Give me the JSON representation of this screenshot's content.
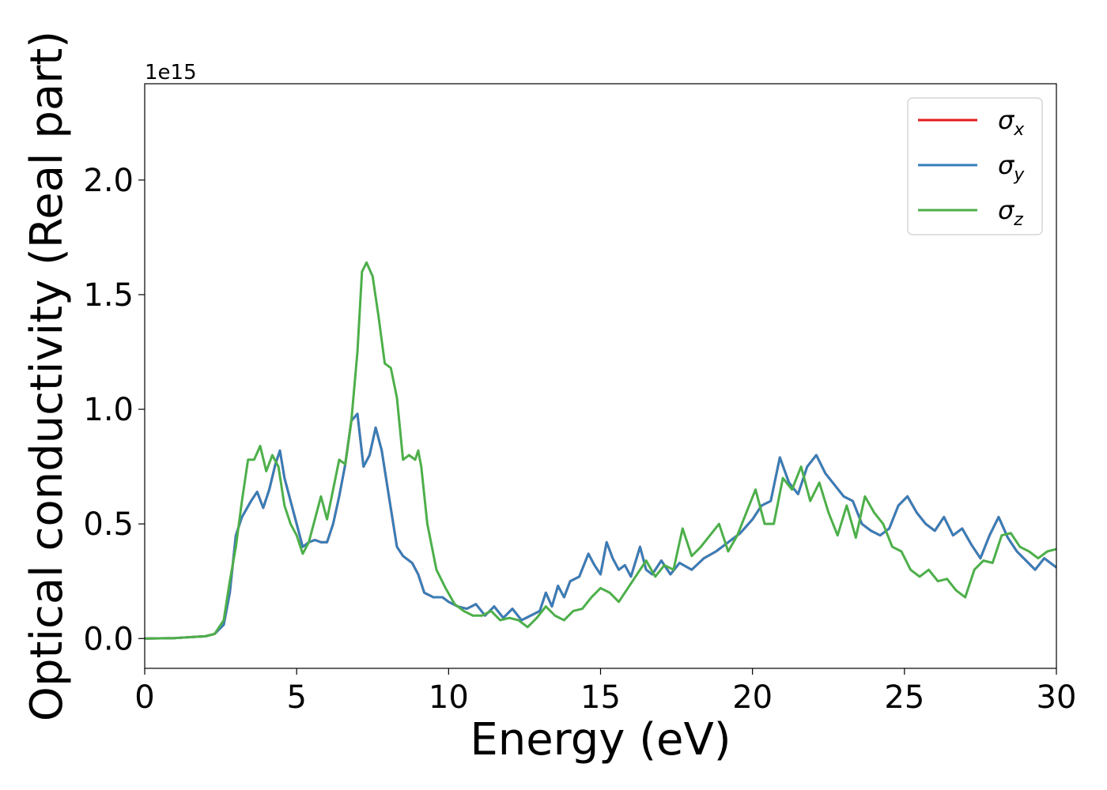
{
  "chart_data": {
    "type": "line",
    "title": "",
    "xlabel": "Energy (eV)",
    "ylabel": "Optical conductivity (Real part)",
    "y_offset_label": "1e15",
    "xlim": [
      0,
      30
    ],
    "ylim": [
      -0.13,
      2.42
    ],
    "xticks": [
      0,
      5,
      10,
      15,
      20,
      25,
      30
    ],
    "xtick_labels": [
      "0",
      "5",
      "10",
      "15",
      "20",
      "25",
      "30"
    ],
    "yticks": [
      0.0,
      0.5,
      1.0,
      1.5,
      2.0
    ],
    "ytick_labels": [
      "0.0",
      "0.5",
      "1.0",
      "1.5",
      "2.0"
    ],
    "grid": false,
    "legend_position": "top-right",
    "series": [
      {
        "name": "σx",
        "legend_symbol": "σ",
        "legend_subscript": "x",
        "color": "#e41a1c",
        "x": [
          0,
          1,
          2,
          2.3,
          2.6,
          2.8,
          3.0,
          3.2,
          3.5,
          3.7,
          3.9,
          4.1,
          4.3,
          4.45,
          4.6,
          4.8,
          5.0,
          5.2,
          5.4,
          5.6,
          5.8,
          6.0,
          6.2,
          6.4,
          6.6,
          6.8,
          7.0,
          7.2,
          7.4,
          7.6,
          7.8,
          8.0,
          8.3,
          8.5,
          8.8,
          9.0,
          9.2,
          9.5,
          9.8,
          10,
          10.3,
          10.6,
          10.9,
          11.2,
          11.5,
          11.8,
          12.1,
          12.4,
          12.7,
          13.0,
          13.2,
          13.4,
          13.6,
          13.8,
          14.0,
          14.3,
          14.6,
          14.8,
          15.0,
          15.2,
          15.4,
          15.6,
          15.8,
          16.0,
          16.3,
          16.5,
          16.7,
          17.0,
          17.3,
          17.6,
          18.0,
          18.4,
          18.8,
          19.2,
          19.6,
          20.0,
          20.3,
          20.6,
          20.9,
          21.2,
          21.5,
          21.8,
          22.1,
          22.4,
          22.7,
          23.0,
          23.3,
          23.6,
          23.9,
          24.2,
          24.5,
          24.8,
          25.1,
          25.4,
          25.7,
          26.0,
          26.3,
          26.6,
          26.9,
          27.2,
          27.5,
          27.8,
          28.1,
          28.4,
          28.7,
          29.0,
          29.3,
          29.6,
          30
        ],
        "y": [
          0,
          0.002,
          0.01,
          0.02,
          0.06,
          0.2,
          0.45,
          0.53,
          0.6,
          0.64,
          0.57,
          0.65,
          0.76,
          0.82,
          0.7,
          0.6,
          0.5,
          0.4,
          0.42,
          0.43,
          0.42,
          0.42,
          0.5,
          0.62,
          0.76,
          0.95,
          0.98,
          0.75,
          0.8,
          0.92,
          0.82,
          0.65,
          0.4,
          0.36,
          0.33,
          0.28,
          0.2,
          0.18,
          0.18,
          0.16,
          0.14,
          0.13,
          0.15,
          0.1,
          0.14,
          0.09,
          0.13,
          0.08,
          0.1,
          0.12,
          0.2,
          0.14,
          0.23,
          0.18,
          0.25,
          0.27,
          0.37,
          0.32,
          0.28,
          0.42,
          0.35,
          0.3,
          0.32,
          0.27,
          0.4,
          0.3,
          0.28,
          0.34,
          0.28,
          0.33,
          0.3,
          0.35,
          0.38,
          0.42,
          0.46,
          0.52,
          0.58,
          0.6,
          0.79,
          0.68,
          0.63,
          0.75,
          0.8,
          0.72,
          0.67,
          0.62,
          0.6,
          0.5,
          0.47,
          0.45,
          0.48,
          0.58,
          0.62,
          0.55,
          0.5,
          0.47,
          0.53,
          0.45,
          0.48,
          0.41,
          0.35,
          0.45,
          0.53,
          0.44,
          0.38,
          0.34,
          0.3,
          0.35,
          0.31
        ]
      },
      {
        "name": "σy",
        "legend_symbol": "σ",
        "legend_subscript": "y",
        "color": "#377eb8",
        "x": [
          0,
          1,
          2,
          2.3,
          2.6,
          2.8,
          3.0,
          3.2,
          3.5,
          3.7,
          3.9,
          4.1,
          4.3,
          4.45,
          4.6,
          4.8,
          5.0,
          5.2,
          5.4,
          5.6,
          5.8,
          6.0,
          6.2,
          6.4,
          6.6,
          6.8,
          7.0,
          7.2,
          7.4,
          7.6,
          7.8,
          8.0,
          8.3,
          8.5,
          8.8,
          9.0,
          9.2,
          9.5,
          9.8,
          10,
          10.3,
          10.6,
          10.9,
          11.2,
          11.5,
          11.8,
          12.1,
          12.4,
          12.7,
          13.0,
          13.2,
          13.4,
          13.6,
          13.8,
          14.0,
          14.3,
          14.6,
          14.8,
          15.0,
          15.2,
          15.4,
          15.6,
          15.8,
          16.0,
          16.3,
          16.5,
          16.7,
          17.0,
          17.3,
          17.6,
          18.0,
          18.4,
          18.8,
          19.2,
          19.6,
          20.0,
          20.3,
          20.6,
          20.9,
          21.2,
          21.5,
          21.8,
          22.1,
          22.4,
          22.7,
          23.0,
          23.3,
          23.6,
          23.9,
          24.2,
          24.5,
          24.8,
          25.1,
          25.4,
          25.7,
          26.0,
          26.3,
          26.6,
          26.9,
          27.2,
          27.5,
          27.8,
          28.1,
          28.4,
          28.7,
          29.0,
          29.3,
          29.6,
          30
        ],
        "y": [
          0,
          0.002,
          0.01,
          0.02,
          0.06,
          0.2,
          0.45,
          0.53,
          0.6,
          0.64,
          0.57,
          0.65,
          0.76,
          0.82,
          0.7,
          0.6,
          0.5,
          0.4,
          0.42,
          0.43,
          0.42,
          0.42,
          0.5,
          0.62,
          0.76,
          0.95,
          0.98,
          0.75,
          0.8,
          0.92,
          0.82,
          0.65,
          0.4,
          0.36,
          0.33,
          0.28,
          0.2,
          0.18,
          0.18,
          0.16,
          0.14,
          0.13,
          0.15,
          0.1,
          0.14,
          0.09,
          0.13,
          0.08,
          0.1,
          0.12,
          0.2,
          0.14,
          0.23,
          0.18,
          0.25,
          0.27,
          0.37,
          0.32,
          0.28,
          0.42,
          0.35,
          0.3,
          0.32,
          0.27,
          0.4,
          0.3,
          0.28,
          0.34,
          0.28,
          0.33,
          0.3,
          0.35,
          0.38,
          0.42,
          0.46,
          0.52,
          0.58,
          0.6,
          0.79,
          0.68,
          0.63,
          0.75,
          0.8,
          0.72,
          0.67,
          0.62,
          0.6,
          0.5,
          0.47,
          0.45,
          0.48,
          0.58,
          0.62,
          0.55,
          0.5,
          0.47,
          0.53,
          0.45,
          0.48,
          0.41,
          0.35,
          0.45,
          0.53,
          0.44,
          0.38,
          0.34,
          0.3,
          0.35,
          0.31
        ]
      },
      {
        "name": "σz",
        "legend_symbol": "σ",
        "legend_subscript": "z",
        "color": "#4daf4a",
        "x": [
          0,
          1,
          2,
          2.3,
          2.6,
          2.8,
          3.0,
          3.2,
          3.4,
          3.6,
          3.8,
          4.0,
          4.2,
          4.4,
          4.6,
          4.8,
          5.0,
          5.2,
          5.4,
          5.6,
          5.8,
          6.0,
          6.2,
          6.4,
          6.6,
          6.8,
          7.0,
          7.15,
          7.3,
          7.5,
          7.7,
          7.9,
          8.1,
          8.3,
          8.5,
          8.7,
          8.9,
          9.0,
          9.1,
          9.3,
          9.6,
          9.9,
          10.2,
          10.5,
          10.8,
          11.1,
          11.4,
          11.7,
          12.0,
          12.3,
          12.6,
          12.9,
          13.2,
          13.5,
          13.8,
          14.1,
          14.4,
          14.7,
          15.0,
          15.3,
          15.6,
          15.9,
          16.2,
          16.5,
          16.8,
          17.1,
          17.4,
          17.7,
          18.0,
          18.3,
          18.6,
          18.9,
          19.2,
          19.5,
          19.8,
          20.1,
          20.4,
          20.7,
          21.0,
          21.3,
          21.6,
          21.9,
          22.2,
          22.5,
          22.8,
          23.1,
          23.4,
          23.7,
          24.0,
          24.3,
          24.6,
          24.9,
          25.2,
          25.5,
          25.8,
          26.1,
          26.4,
          26.7,
          27.0,
          27.3,
          27.6,
          27.9,
          28.2,
          28.5,
          28.8,
          29.1,
          29.4,
          29.7,
          30
        ],
        "y": [
          0,
          0.002,
          0.01,
          0.02,
          0.08,
          0.25,
          0.4,
          0.6,
          0.78,
          0.78,
          0.84,
          0.73,
          0.8,
          0.75,
          0.58,
          0.5,
          0.45,
          0.37,
          0.42,
          0.52,
          0.62,
          0.52,
          0.65,
          0.78,
          0.76,
          0.95,
          1.25,
          1.6,
          1.64,
          1.58,
          1.4,
          1.2,
          1.18,
          1.05,
          0.78,
          0.8,
          0.78,
          0.82,
          0.75,
          0.5,
          0.3,
          0.22,
          0.15,
          0.12,
          0.1,
          0.1,
          0.12,
          0.08,
          0.09,
          0.08,
          0.05,
          0.09,
          0.14,
          0.1,
          0.08,
          0.12,
          0.13,
          0.18,
          0.22,
          0.2,
          0.16,
          0.22,
          0.28,
          0.34,
          0.27,
          0.32,
          0.3,
          0.48,
          0.36,
          0.4,
          0.45,
          0.5,
          0.38,
          0.45,
          0.55,
          0.65,
          0.5,
          0.5,
          0.7,
          0.65,
          0.75,
          0.6,
          0.68,
          0.55,
          0.45,
          0.58,
          0.44,
          0.62,
          0.55,
          0.5,
          0.4,
          0.38,
          0.3,
          0.27,
          0.3,
          0.25,
          0.26,
          0.21,
          0.18,
          0.3,
          0.34,
          0.33,
          0.45,
          0.46,
          0.4,
          0.38,
          0.35,
          0.38,
          0.39
        ]
      }
    ]
  }
}
